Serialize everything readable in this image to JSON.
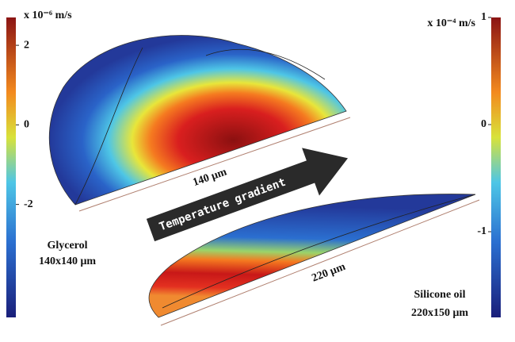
{
  "left_colorbar": {
    "unit": "x 10⁻⁶ m/s",
    "lim": [
      -4.84,
      2.7
    ],
    "ticks": [
      2,
      0,
      -2
    ]
  },
  "right_colorbar": {
    "unit": "x 10⁻⁴ m/s",
    "lim": [
      -1.8,
      1
    ],
    "ticks": [
      1,
      0,
      -1
    ]
  },
  "left_droplet": {
    "dimension": "140 μm",
    "label": [
      "Glycerol",
      "140x140 μm"
    ]
  },
  "right_droplet": {
    "dimension": "220 μm",
    "label": [
      "Silicone oil",
      "220x150 μm"
    ]
  },
  "arrow": "Temperature gradient"
}
